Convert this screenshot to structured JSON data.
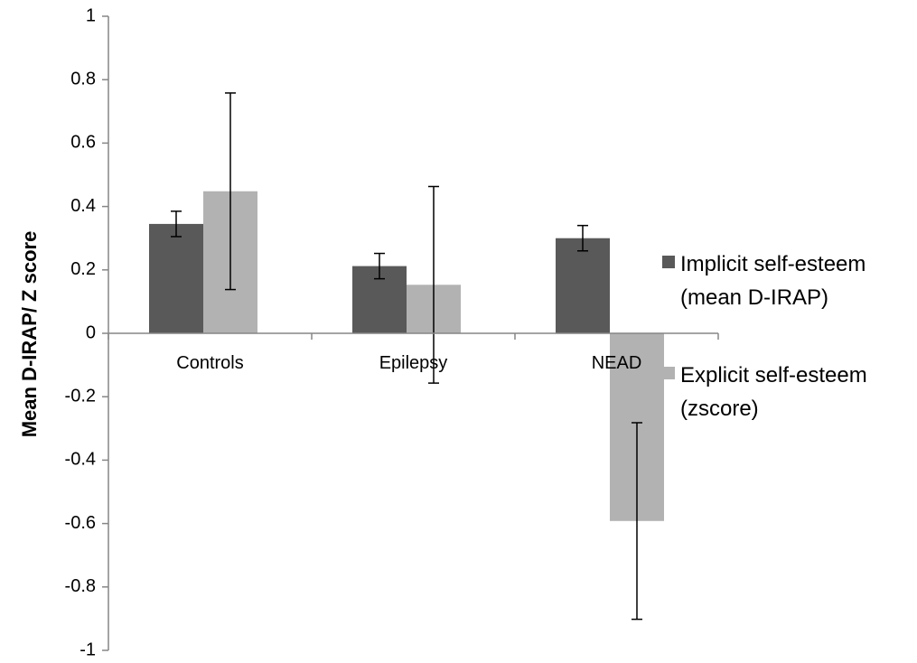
{
  "chart_data": {
    "type": "bar",
    "categories": [
      "Controls",
      "Epilepsy",
      "NEAD"
    ],
    "series": [
      {
        "name_lines": [
          "Implicit self-esteem",
          "(mean D-IRAP)"
        ],
        "color": "#595959",
        "values": [
          0.345,
          0.212,
          0.3
        ],
        "error": [
          0.04,
          0.04,
          0.04
        ]
      },
      {
        "name_lines": [
          "Explicit self-esteem",
          "(zscore)"
        ],
        "color": "#b2b2b2",
        "values": [
          0.448,
          0.153,
          -0.592
        ],
        "error": [
          0.31,
          0.31,
          0.31
        ]
      }
    ],
    "ylabel": "Mean D-IRAP/ Z score",
    "ylim": [
      -1,
      1
    ],
    "yticks": [
      "1",
      "0.8",
      "0.6",
      "0.4",
      "0.2",
      "0",
      "-0.2",
      "-0.4",
      "-0.6",
      "-0.8",
      "-1"
    ],
    "grid": false,
    "legend_position": "right"
  }
}
